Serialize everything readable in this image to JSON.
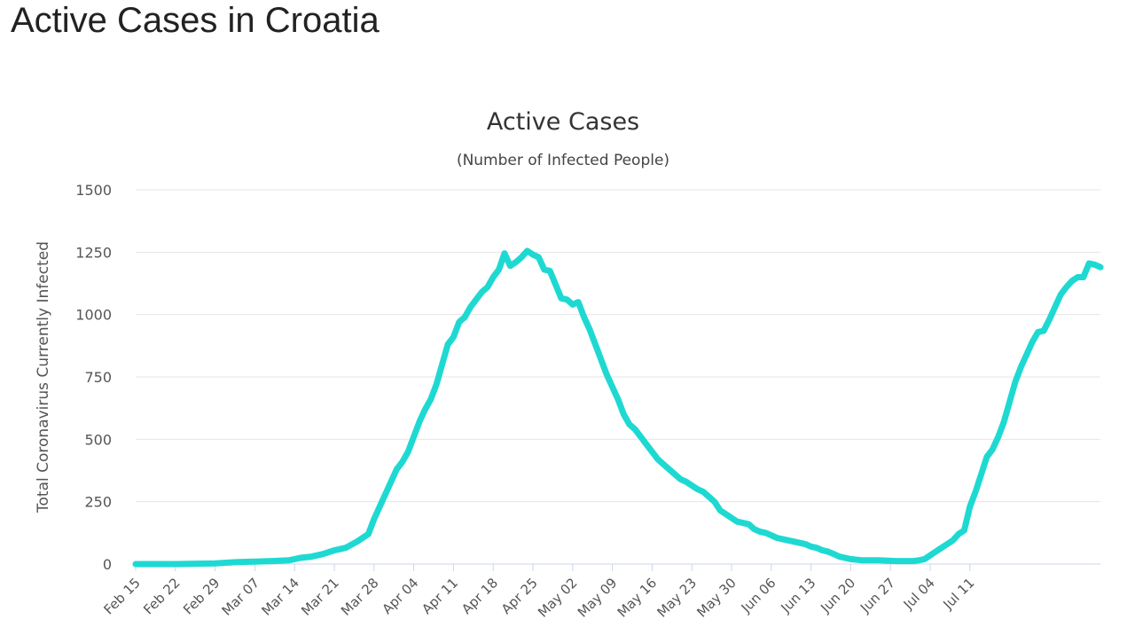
{
  "page": {
    "title": "Active Cases in Croatia"
  },
  "colors": {
    "line": "#1ed9d2",
    "grid": "#e6e6e6",
    "axis": "#ccd6eb"
  },
  "chart_data": {
    "type": "line",
    "title": "Active Cases",
    "subtitle": "(Number of Infected People)",
    "xlabel": "",
    "ylabel": "Total Coronavirus Currently Infected",
    "ylim": [
      0,
      1500
    ],
    "yticks": [
      0,
      250,
      500,
      750,
      1000,
      1250,
      1500
    ],
    "xtick_labels": [
      "Feb 15",
      "Feb 22",
      "Feb 29",
      "Mar 07",
      "Mar 14",
      "Mar 21",
      "Mar 28",
      "Apr 04",
      "Apr 11",
      "Apr 18",
      "Apr 25",
      "May 02",
      "May 09",
      "May 16",
      "May 23",
      "May 30",
      "Jun 06",
      "Jun 13",
      "Jun 20",
      "Jun 27",
      "Jul 04",
      "Jul 11"
    ],
    "x_start": "Feb 15",
    "x_unit": "days since Feb 15",
    "series": [
      {
        "name": "Active Cases",
        "points": [
          [
            0,
            0
          ],
          [
            7,
            0
          ],
          [
            14,
            3
          ],
          [
            18,
            8
          ],
          [
            21,
            10
          ],
          [
            24,
            12
          ],
          [
            27,
            15
          ],
          [
            29,
            25
          ],
          [
            31,
            30
          ],
          [
            33,
            40
          ],
          [
            35,
            55
          ],
          [
            37,
            65
          ],
          [
            39,
            90
          ],
          [
            41,
            120
          ],
          [
            42,
            180
          ],
          [
            43,
            230
          ],
          [
            44,
            280
          ],
          [
            45,
            330
          ],
          [
            46,
            380
          ],
          [
            47,
            410
          ],
          [
            48,
            450
          ],
          [
            49,
            510
          ],
          [
            50,
            570
          ],
          [
            51,
            620
          ],
          [
            52,
            660
          ],
          [
            53,
            720
          ],
          [
            54,
            800
          ],
          [
            55,
            880
          ],
          [
            56,
            910
          ],
          [
            57,
            970
          ],
          [
            58,
            990
          ],
          [
            59,
            1030
          ],
          [
            60,
            1060
          ],
          [
            61,
            1090
          ],
          [
            62,
            1110
          ],
          [
            63,
            1150
          ],
          [
            64,
            1180
          ],
          [
            65,
            1245
          ],
          [
            66,
            1195
          ],
          [
            67,
            1210
          ],
          [
            68,
            1230
          ],
          [
            69,
            1255
          ],
          [
            70,
            1240
          ],
          [
            71,
            1230
          ],
          [
            72,
            1180
          ],
          [
            73,
            1175
          ],
          [
            74,
            1120
          ],
          [
            75,
            1065
          ],
          [
            76,
            1060
          ],
          [
            77,
            1040
          ],
          [
            78,
            1050
          ],
          [
            79,
            990
          ],
          [
            80,
            940
          ],
          [
            81,
            880
          ],
          [
            82,
            820
          ],
          [
            83,
            760
          ],
          [
            84,
            710
          ],
          [
            85,
            660
          ],
          [
            86,
            600
          ],
          [
            87,
            560
          ],
          [
            88,
            540
          ],
          [
            89,
            510
          ],
          [
            90,
            480
          ],
          [
            91,
            450
          ],
          [
            92,
            420
          ],
          [
            93,
            400
          ],
          [
            94,
            380
          ],
          [
            95,
            360
          ],
          [
            96,
            340
          ],
          [
            97,
            330
          ],
          [
            98,
            315
          ],
          [
            99,
            300
          ],
          [
            100,
            290
          ],
          [
            101,
            270
          ],
          [
            102,
            250
          ],
          [
            103,
            215
          ],
          [
            104,
            200
          ],
          [
            105,
            185
          ],
          [
            106,
            170
          ],
          [
            107,
            165
          ],
          [
            108,
            160
          ],
          [
            109,
            140
          ],
          [
            110,
            130
          ],
          [
            111,
            125
          ],
          [
            112,
            115
          ],
          [
            113,
            105
          ],
          [
            114,
            100
          ],
          [
            115,
            95
          ],
          [
            116,
            90
          ],
          [
            117,
            85
          ],
          [
            118,
            80
          ],
          [
            119,
            70
          ],
          [
            120,
            65
          ],
          [
            121,
            55
          ],
          [
            122,
            50
          ],
          [
            123,
            40
          ],
          [
            124,
            30
          ],
          [
            125,
            25
          ],
          [
            126,
            20
          ],
          [
            128,
            15
          ],
          [
            131,
            15
          ],
          [
            134,
            12
          ],
          [
            137,
            12
          ],
          [
            138,
            15
          ],
          [
            139,
            20
          ],
          [
            140,
            35
          ],
          [
            141,
            50
          ],
          [
            142,
            65
          ],
          [
            143,
            80
          ],
          [
            144,
            95
          ],
          [
            145,
            120
          ],
          [
            146,
            135
          ],
          [
            147,
            230
          ],
          [
            148,
            290
          ],
          [
            149,
            360
          ],
          [
            150,
            430
          ],
          [
            151,
            460
          ],
          [
            152,
            510
          ],
          [
            153,
            570
          ],
          [
            154,
            650
          ],
          [
            155,
            730
          ],
          [
            156,
            790
          ],
          [
            157,
            840
          ],
          [
            158,
            890
          ],
          [
            159,
            930
          ],
          [
            160,
            935
          ],
          [
            161,
            980
          ],
          [
            162,
            1030
          ],
          [
            163,
            1080
          ],
          [
            164,
            1110
          ],
          [
            165,
            1135
          ],
          [
            166,
            1150
          ],
          [
            167,
            1150
          ],
          [
            168,
            1205
          ],
          [
            169,
            1200
          ],
          [
            170,
            1190
          ]
        ]
      }
    ]
  }
}
